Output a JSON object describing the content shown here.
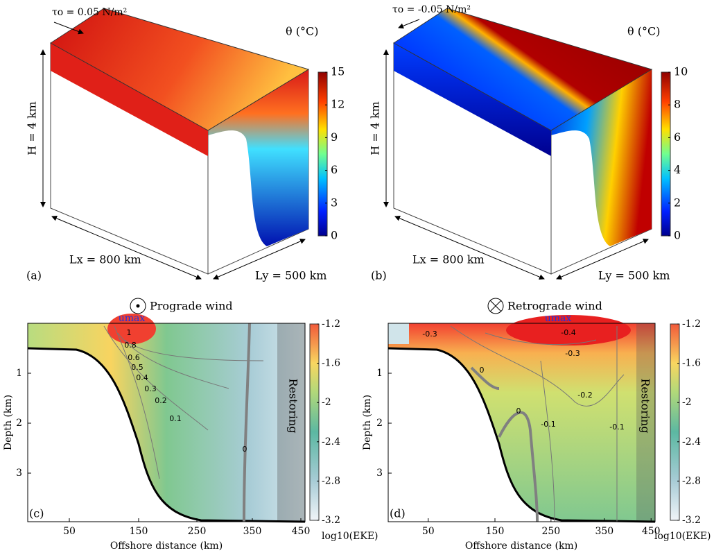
{
  "panels": [
    {
      "label": "(a)",
      "stress": "τo = 0.05 N/m²",
      "field": "θ (°C)",
      "depth": "H = 4 km",
      "length_x": "Lx = 800 km",
      "length_y": "Ly = 500 km",
      "colorbar_ticks": [
        "15",
        "12",
        "9",
        "6",
        "3",
        "0"
      ]
    },
    {
      "label": "(b)",
      "stress": "τo = -0.05 N/m²",
      "field": "θ (°C)",
      "depth": "H = 4 km",
      "length_x": "Lx = 800 km",
      "length_y": "Ly = 500 km",
      "colorbar_ticks": [
        "10",
        "8",
        "6",
        "4",
        "2",
        "0"
      ]
    },
    {
      "label": "(c)",
      "title": "Prograde wind",
      "jet": "umax",
      "y_label": "Depth (km)",
      "x_label": "Offshore distance (km)",
      "zone": "Restoring",
      "y_ticks": [
        "1",
        "2",
        "3"
      ],
      "x_ticks": [
        "50",
        "150",
        "250",
        "350",
        "450"
      ],
      "colorbar_label": "log10(EKE)",
      "colorbar_ticks": [
        "-1.2",
        "-1.6",
        "-2",
        "-2.4",
        "-2.8",
        "-3.2"
      ],
      "contour_labels": [
        "1",
        "0.8",
        "0.6",
        "0.5",
        "0.4",
        "0.3",
        "0.2",
        "0.1",
        "0"
      ]
    },
    {
      "label": "(d)",
      "title": "Retrograde wind",
      "jet": "umax",
      "y_label": "Depth (km)",
      "x_label": "Offshore distance (km)",
      "zone": "Restoring",
      "y_ticks": [
        "1",
        "2",
        "3"
      ],
      "x_ticks": [
        "50",
        "150",
        "250",
        "350",
        "450"
      ],
      "colorbar_label": "log10(EKE)",
      "colorbar_ticks": [
        "-1.2",
        "-1.6",
        "-2",
        "-2.4",
        "-2.8",
        "-3.2"
      ],
      "contour_labels": [
        "-0.3",
        "-0.4",
        "-0.3",
        "-0.2",
        "0",
        "0",
        "-0.1",
        "-0.1"
      ]
    }
  ]
}
